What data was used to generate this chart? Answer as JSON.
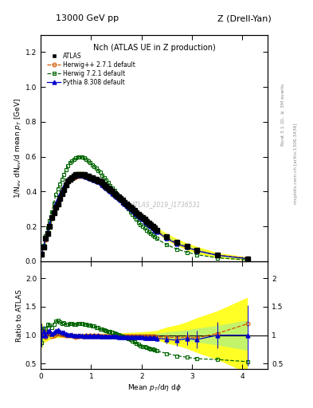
{
  "title_top": "13000 GeV pp",
  "title_top_right": "Z (Drell-Yan)",
  "plot_title": "Nch (ATLAS UE in Z production)",
  "xlabel": "Mean $p_T$/d$\\eta$ d$\\phi$",
  "ylabel_main": "1/N$_{ev}$ dN$_{ev}$/d mean $p_T$ [GeV]",
  "ylabel_ratio": "Ratio to ATLAS",
  "right_label_top": "Rivet 3.1.10, $\\geq$ 3M events",
  "right_label_bottom": "mcplots.cern.ch [arXiv:1306.3436]",
  "watermark": "ATLAS_2019_I1736531",
  "atlas_x": [
    0.02,
    0.06,
    0.1,
    0.14,
    0.18,
    0.22,
    0.26,
    0.3,
    0.34,
    0.38,
    0.42,
    0.46,
    0.5,
    0.54,
    0.58,
    0.62,
    0.66,
    0.7,
    0.74,
    0.78,
    0.82,
    0.86,
    0.9,
    0.94,
    0.98,
    1.02,
    1.06,
    1.1,
    1.14,
    1.18,
    1.22,
    1.26,
    1.3,
    1.34,
    1.38,
    1.42,
    1.46,
    1.5,
    1.54,
    1.58,
    1.62,
    1.66,
    1.7,
    1.74,
    1.78,
    1.82,
    1.86,
    1.9,
    1.94,
    1.98,
    2.02,
    2.06,
    2.1,
    2.14,
    2.18,
    2.22,
    2.26,
    2.3,
    2.5,
    2.7,
    2.9,
    3.1,
    3.5,
    4.1
  ],
  "atlas_y": [
    0.04,
    0.08,
    0.13,
    0.16,
    0.2,
    0.25,
    0.28,
    0.31,
    0.33,
    0.36,
    0.39,
    0.41,
    0.44,
    0.46,
    0.47,
    0.48,
    0.49,
    0.5,
    0.5,
    0.5,
    0.5,
    0.5,
    0.49,
    0.49,
    0.48,
    0.48,
    0.47,
    0.47,
    0.46,
    0.46,
    0.45,
    0.44,
    0.43,
    0.42,
    0.41,
    0.4,
    0.39,
    0.38,
    0.37,
    0.36,
    0.35,
    0.34,
    0.33,
    0.32,
    0.31,
    0.3,
    0.29,
    0.28,
    0.27,
    0.26,
    0.25,
    0.24,
    0.23,
    0.22,
    0.21,
    0.2,
    0.19,
    0.18,
    0.14,
    0.11,
    0.085,
    0.065,
    0.035,
    0.015
  ],
  "atlas_yerr": [
    0.004,
    0.004,
    0.006,
    0.006,
    0.006,
    0.006,
    0.006,
    0.006,
    0.006,
    0.006,
    0.006,
    0.006,
    0.006,
    0.006,
    0.006,
    0.006,
    0.006,
    0.006,
    0.006,
    0.006,
    0.006,
    0.006,
    0.006,
    0.006,
    0.006,
    0.006,
    0.006,
    0.006,
    0.006,
    0.006,
    0.006,
    0.006,
    0.006,
    0.006,
    0.006,
    0.006,
    0.006,
    0.006,
    0.006,
    0.006,
    0.006,
    0.006,
    0.006,
    0.006,
    0.006,
    0.006,
    0.006,
    0.006,
    0.006,
    0.006,
    0.006,
    0.006,
    0.006,
    0.006,
    0.006,
    0.006,
    0.006,
    0.006,
    0.008,
    0.008,
    0.008,
    0.008,
    0.006,
    0.004
  ],
  "herwig_x": [
    0.02,
    0.06,
    0.1,
    0.14,
    0.18,
    0.22,
    0.26,
    0.3,
    0.34,
    0.38,
    0.42,
    0.46,
    0.5,
    0.54,
    0.58,
    0.62,
    0.66,
    0.7,
    0.74,
    0.78,
    0.82,
    0.86,
    0.9,
    0.94,
    0.98,
    1.02,
    1.06,
    1.1,
    1.14,
    1.18,
    1.22,
    1.26,
    1.3,
    1.34,
    1.38,
    1.42,
    1.46,
    1.5,
    1.54,
    1.58,
    1.62,
    1.66,
    1.7,
    1.74,
    1.78,
    1.82,
    1.86,
    1.9,
    1.94,
    1.98,
    2.02,
    2.06,
    2.1,
    2.14,
    2.18,
    2.22,
    2.26,
    2.3,
    2.5,
    2.7,
    2.9,
    3.1,
    3.5,
    4.1
  ],
  "herwig_y": [
    0.04,
    0.085,
    0.125,
    0.165,
    0.21,
    0.245,
    0.28,
    0.315,
    0.345,
    0.37,
    0.395,
    0.415,
    0.435,
    0.455,
    0.465,
    0.475,
    0.48,
    0.485,
    0.49,
    0.49,
    0.49,
    0.49,
    0.485,
    0.48,
    0.475,
    0.47,
    0.465,
    0.46,
    0.455,
    0.45,
    0.44,
    0.43,
    0.42,
    0.41,
    0.4,
    0.39,
    0.385,
    0.375,
    0.365,
    0.355,
    0.345,
    0.335,
    0.325,
    0.315,
    0.305,
    0.295,
    0.285,
    0.275,
    0.265,
    0.255,
    0.245,
    0.235,
    0.225,
    0.215,
    0.205,
    0.195,
    0.185,
    0.175,
    0.135,
    0.105,
    0.082,
    0.062,
    0.036,
    0.018
  ],
  "herwig7_x": [
    0.02,
    0.06,
    0.1,
    0.14,
    0.18,
    0.22,
    0.26,
    0.3,
    0.34,
    0.38,
    0.42,
    0.46,
    0.5,
    0.54,
    0.58,
    0.62,
    0.66,
    0.7,
    0.74,
    0.78,
    0.82,
    0.86,
    0.9,
    0.94,
    0.98,
    1.02,
    1.06,
    1.1,
    1.14,
    1.18,
    1.22,
    1.26,
    1.3,
    1.34,
    1.38,
    1.42,
    1.46,
    1.5,
    1.54,
    1.58,
    1.62,
    1.66,
    1.7,
    1.74,
    1.78,
    1.82,
    1.86,
    1.9,
    1.94,
    1.98,
    2.02,
    2.06,
    2.1,
    2.14,
    2.18,
    2.22,
    2.26,
    2.3,
    2.5,
    2.7,
    2.9,
    3.1,
    3.5,
    4.1
  ],
  "herwig7_y": [
    0.035,
    0.09,
    0.145,
    0.19,
    0.235,
    0.285,
    0.335,
    0.385,
    0.415,
    0.445,
    0.47,
    0.5,
    0.525,
    0.55,
    0.565,
    0.575,
    0.585,
    0.595,
    0.6,
    0.6,
    0.6,
    0.595,
    0.585,
    0.575,
    0.565,
    0.555,
    0.545,
    0.535,
    0.52,
    0.51,
    0.495,
    0.48,
    0.465,
    0.45,
    0.435,
    0.42,
    0.405,
    0.39,
    0.375,
    0.36,
    0.345,
    0.33,
    0.315,
    0.3,
    0.285,
    0.27,
    0.255,
    0.24,
    0.225,
    0.21,
    0.2,
    0.19,
    0.18,
    0.17,
    0.16,
    0.15,
    0.14,
    0.13,
    0.095,
    0.07,
    0.052,
    0.038,
    0.02,
    0.008
  ],
  "pythia_x": [
    0.02,
    0.06,
    0.1,
    0.14,
    0.18,
    0.22,
    0.26,
    0.3,
    0.34,
    0.38,
    0.42,
    0.46,
    0.5,
    0.54,
    0.58,
    0.62,
    0.66,
    0.7,
    0.74,
    0.78,
    0.82,
    0.86,
    0.9,
    0.94,
    0.98,
    1.02,
    1.06,
    1.1,
    1.14,
    1.18,
    1.22,
    1.26,
    1.3,
    1.34,
    1.38,
    1.42,
    1.46,
    1.5,
    1.54,
    1.58,
    1.62,
    1.66,
    1.7,
    1.74,
    1.78,
    1.82,
    1.86,
    1.9,
    1.94,
    1.98,
    2.02,
    2.06,
    2.1,
    2.14,
    2.18,
    2.22,
    2.26,
    2.3,
    2.5,
    2.7,
    2.9,
    3.1,
    3.5,
    4.1
  ],
  "pythia_y": [
    0.04,
    0.085,
    0.13,
    0.17,
    0.215,
    0.255,
    0.295,
    0.335,
    0.36,
    0.385,
    0.41,
    0.43,
    0.45,
    0.465,
    0.475,
    0.485,
    0.49,
    0.495,
    0.495,
    0.495,
    0.495,
    0.49,
    0.485,
    0.48,
    0.475,
    0.47,
    0.465,
    0.46,
    0.455,
    0.45,
    0.44,
    0.43,
    0.42,
    0.41,
    0.4,
    0.39,
    0.38,
    0.37,
    0.36,
    0.35,
    0.34,
    0.33,
    0.32,
    0.31,
    0.3,
    0.29,
    0.28,
    0.27,
    0.26,
    0.25,
    0.24,
    0.23,
    0.22,
    0.21,
    0.2,
    0.19,
    0.18,
    0.17,
    0.13,
    0.1,
    0.08,
    0.06,
    0.035,
    0.015
  ],
  "pythia_yerr": [
    0.008,
    0.008,
    0.008,
    0.008,
    0.008,
    0.008,
    0.008,
    0.008,
    0.008,
    0.008,
    0.008,
    0.008,
    0.008,
    0.008,
    0.008,
    0.008,
    0.008,
    0.008,
    0.008,
    0.008,
    0.008,
    0.008,
    0.008,
    0.008,
    0.008,
    0.008,
    0.008,
    0.008,
    0.008,
    0.008,
    0.008,
    0.008,
    0.008,
    0.008,
    0.008,
    0.008,
    0.008,
    0.008,
    0.008,
    0.008,
    0.008,
    0.008,
    0.008,
    0.008,
    0.008,
    0.008,
    0.008,
    0.008,
    0.008,
    0.008,
    0.008,
    0.008,
    0.008,
    0.008,
    0.008,
    0.008,
    0.008,
    0.008,
    0.01,
    0.01,
    0.01,
    0.01,
    0.008,
    0.008
  ],
  "atlas_color": "#000000",
  "herwig_color": "#d45500",
  "herwig7_color": "#006600",
  "pythia_color": "#0000cc",
  "band_yellow": "#ffff00",
  "band_green": "#aaee88",
  "xlim": [
    0,
    4.5
  ],
  "ylim_main": [
    0,
    1.3
  ],
  "ylim_ratio": [
    0.4,
    2.3
  ],
  "yticks_main": [
    0.0,
    0.2,
    0.4,
    0.6,
    0.8,
    1.0,
    1.2
  ],
  "yticks_ratio": [
    0.5,
    1.0,
    1.5,
    2.0
  ],
  "xticks": [
    0,
    1,
    2,
    3,
    4
  ]
}
